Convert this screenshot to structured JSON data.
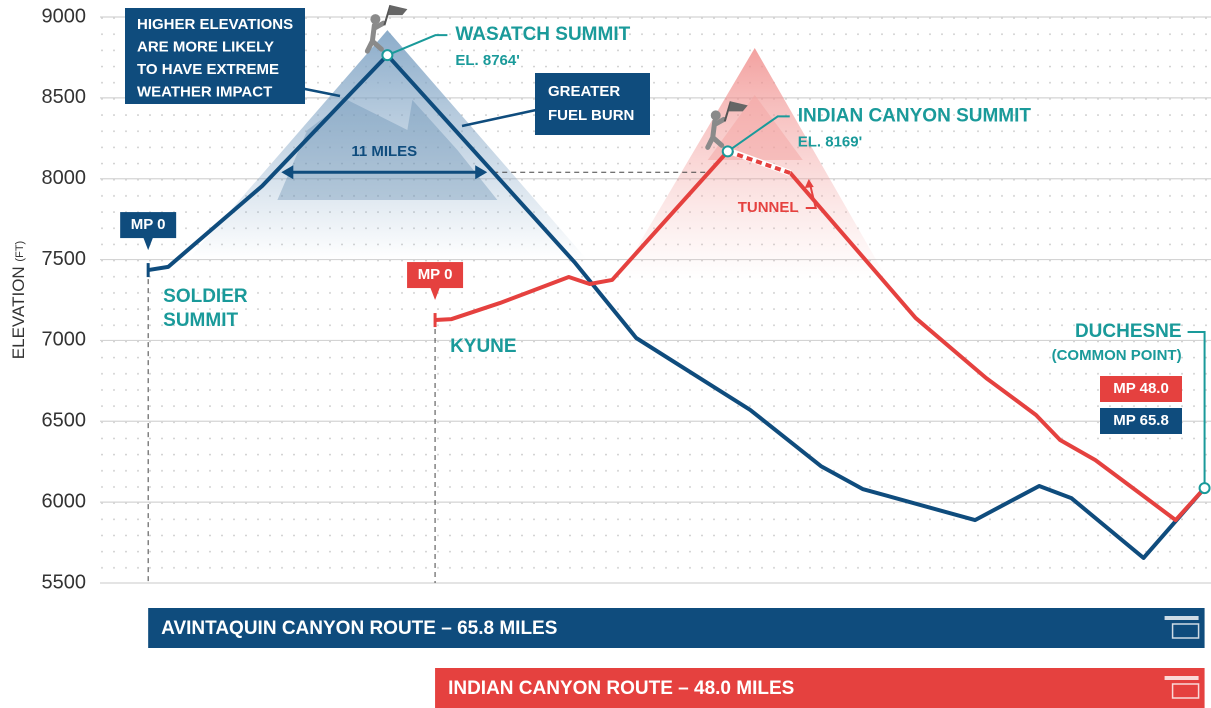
{
  "chart_data": {
    "type": "line",
    "y_label": "ELEVATION",
    "y_label_unit": "(FT)",
    "xlim": [
      -3,
      66.2
    ],
    "ylim": [
      5500,
      9000
    ],
    "yticks": [
      5500,
      6000,
      6500,
      7000,
      7500,
      8000,
      8500,
      9000
    ],
    "grid": true,
    "series": [
      {
        "name": "AVINTAQUIN CANYON ROUTE – 65.8 MILES",
        "color": "#0f4c7d",
        "x": [
          0,
          1.25,
          7.1,
          14.9,
          26.6,
          30.4,
          37.5,
          41.9,
          44.5,
          51.5,
          55.5,
          57.5,
          62.0,
          65.8
        ],
        "values": [
          7435,
          7455,
          7955,
          8764,
          7479,
          7015,
          6570,
          6223,
          6081,
          5889,
          6100,
          6025,
          5655,
          6087
        ],
        "start_label": "MP 0",
        "start_place": [
          "SOLDIER",
          "SUMMIT"
        ],
        "summit_name": "WASATCH SUMMIT",
        "summit_elevation": "EL. 8764'",
        "end_label": "MP 65.8"
      },
      {
        "name": "INDIAN CANYON ROUTE – 48.0 MILES",
        "color": "#e5413f",
        "x": [
          17.87,
          18.9,
          21.9,
          26.2,
          27.5,
          28.9,
          36.1,
          40.0,
          47.8,
          52.2,
          55.3,
          56.8,
          59.0,
          64.0,
          65.8
        ],
        "values": [
          7126,
          7132,
          7231,
          7392,
          7349,
          7374,
          8169,
          8035,
          7139,
          6767,
          6539,
          6384,
          6260,
          5889,
          6087
        ],
        "start_label": "MP 0",
        "start_place": [
          "KYUNE"
        ],
        "summit_name": "INDIAN CANYON SUMMIT",
        "summit_elevation": "EL. 8169'",
        "end_label": "MP 48.0"
      }
    ],
    "tunnel": {
      "label": "TUNNEL",
      "x": [
        36.1,
        40.0
      ],
      "values": [
        8169,
        8035
      ]
    },
    "distance": {
      "label": "11 MILES",
      "level": 8040
    },
    "notes": [
      [
        "HIGHER ELEVATIONS",
        "ARE MORE LIKELY",
        "TO HAVE EXTREME",
        "WEATHER IMPACT"
      ],
      [
        "GREATER",
        "FUEL BURN"
      ]
    ],
    "common_point": {
      "name": "DUCHESNE",
      "note": "(COMMON POINT)"
    }
  }
}
